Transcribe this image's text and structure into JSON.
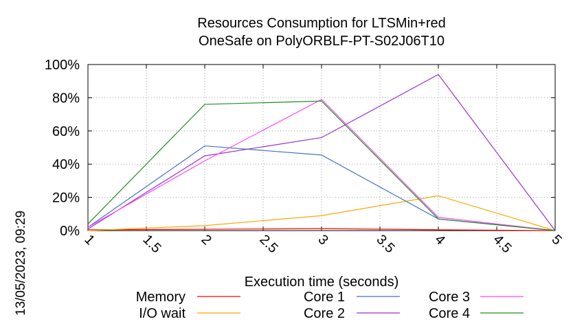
{
  "timestamp": "13/05/2023, 09:29",
  "chart_data": {
    "type": "line",
    "title": [
      "Resources Consumption for LTSMin+red",
      "OneSafe on PolyORBLF-PT-S02J06T10"
    ],
    "xlabel": "Execution time (seconds)",
    "ylabel": "",
    "xlim": [
      1,
      5
    ],
    "ylim": [
      0,
      100
    ],
    "x_ticks": [
      "1",
      "1.5",
      "2",
      "2.5",
      "3",
      "3.5",
      "4",
      "4.5",
      "5"
    ],
    "y_ticks": [
      "0%",
      "20%",
      "40%",
      "60%",
      "80%",
      "100%"
    ],
    "grid": true,
    "legend_position": "bottom",
    "x": [
      1,
      2,
      3,
      4,
      5
    ],
    "series": [
      {
        "name": "Memory",
        "color": "#ff0000",
        "values": [
          0.5,
          0.8,
          1.2,
          0.5,
          0
        ]
      },
      {
        "name": "I/O wait",
        "color": "#ffa500",
        "values": [
          0,
          3,
          9,
          21,
          0
        ]
      },
      {
        "name": "Core 1",
        "color": "#4472c4",
        "values": [
          2,
          51,
          45.5,
          7,
          0
        ]
      },
      {
        "name": "Core 2",
        "color": "#9932cc",
        "values": [
          1,
          45,
          56,
          94,
          0
        ]
      },
      {
        "name": "Core 3",
        "color": "#ff44ff",
        "values": [
          2,
          42,
          79,
          8,
          0
        ]
      },
      {
        "name": "Core 4",
        "color": "#228b22",
        "values": [
          4,
          76,
          78,
          7,
          0
        ]
      }
    ]
  }
}
